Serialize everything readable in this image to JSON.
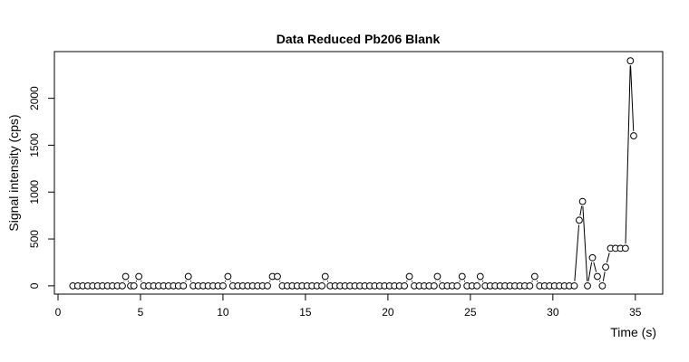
{
  "chart_data": {
    "type": "line",
    "title": "Data Reduced Pb206 Blank",
    "xlabel": "Time (s)",
    "ylabel": "Signal intensity (cps)",
    "xlim": [
      0,
      36
    ],
    "ylim": [
      -40,
      2450
    ],
    "xticks": [
      0,
      5,
      10,
      15,
      20,
      25,
      30,
      35
    ],
    "yticks": [
      0,
      500,
      1000,
      1500,
      2000
    ],
    "grid": false,
    "line_style": "points and connecting lines (R type b)",
    "colors": {
      "line": "#000000",
      "point_fill": "#ffffff",
      "point_stroke": "#000000"
    },
    "points": [
      {
        "x": 0.9,
        "y": 0
      },
      {
        "x": 1.2,
        "y": 0
      },
      {
        "x": 1.5,
        "y": 0
      },
      {
        "x": 1.8,
        "y": 0
      },
      {
        "x": 2.1,
        "y": 0
      },
      {
        "x": 2.4,
        "y": 0
      },
      {
        "x": 2.7,
        "y": 0
      },
      {
        "x": 3.0,
        "y": 0
      },
      {
        "x": 3.3,
        "y": 0
      },
      {
        "x": 3.6,
        "y": 0
      },
      {
        "x": 3.9,
        "y": 0
      },
      {
        "x": 4.1,
        "y": 100
      },
      {
        "x": 4.4,
        "y": 0
      },
      {
        "x": 4.6,
        "y": 0
      },
      {
        "x": 4.9,
        "y": 100
      },
      {
        "x": 5.2,
        "y": 0
      },
      {
        "x": 5.5,
        "y": 0
      },
      {
        "x": 5.8,
        "y": 0
      },
      {
        "x": 6.1,
        "y": 0
      },
      {
        "x": 6.4,
        "y": 0
      },
      {
        "x": 6.7,
        "y": 0
      },
      {
        "x": 7.0,
        "y": 0
      },
      {
        "x": 7.3,
        "y": 0
      },
      {
        "x": 7.6,
        "y": 0
      },
      {
        "x": 7.9,
        "y": 100
      },
      {
        "x": 8.2,
        "y": 0
      },
      {
        "x": 8.5,
        "y": 0
      },
      {
        "x": 8.8,
        "y": 0
      },
      {
        "x": 9.1,
        "y": 0
      },
      {
        "x": 9.4,
        "y": 0
      },
      {
        "x": 9.7,
        "y": 0
      },
      {
        "x": 10.0,
        "y": 0
      },
      {
        "x": 10.3,
        "y": 100
      },
      {
        "x": 10.6,
        "y": 0
      },
      {
        "x": 10.9,
        "y": 0
      },
      {
        "x": 11.2,
        "y": 0
      },
      {
        "x": 11.5,
        "y": 0
      },
      {
        "x": 11.8,
        "y": 0
      },
      {
        "x": 12.1,
        "y": 0
      },
      {
        "x": 12.4,
        "y": 0
      },
      {
        "x": 12.7,
        "y": 0
      },
      {
        "x": 13.0,
        "y": 100
      },
      {
        "x": 13.3,
        "y": 100
      },
      {
        "x": 13.6,
        "y": 0
      },
      {
        "x": 13.9,
        "y": 0
      },
      {
        "x": 14.2,
        "y": 0
      },
      {
        "x": 14.5,
        "y": 0
      },
      {
        "x": 14.8,
        "y": 0
      },
      {
        "x": 15.1,
        "y": 0
      },
      {
        "x": 15.4,
        "y": 0
      },
      {
        "x": 15.7,
        "y": 0
      },
      {
        "x": 16.0,
        "y": 0
      },
      {
        "x": 16.2,
        "y": 100
      },
      {
        "x": 16.5,
        "y": 0
      },
      {
        "x": 16.8,
        "y": 0
      },
      {
        "x": 17.1,
        "y": 0
      },
      {
        "x": 17.4,
        "y": 0
      },
      {
        "x": 17.7,
        "y": 0
      },
      {
        "x": 18.0,
        "y": 0
      },
      {
        "x": 18.3,
        "y": 0
      },
      {
        "x": 18.6,
        "y": 0
      },
      {
        "x": 18.9,
        "y": 0
      },
      {
        "x": 19.2,
        "y": 0
      },
      {
        "x": 19.5,
        "y": 0
      },
      {
        "x": 19.8,
        "y": 0
      },
      {
        "x": 20.1,
        "y": 0
      },
      {
        "x": 20.4,
        "y": 0
      },
      {
        "x": 20.7,
        "y": 0
      },
      {
        "x": 21.0,
        "y": 0
      },
      {
        "x": 21.3,
        "y": 100
      },
      {
        "x": 21.6,
        "y": 0
      },
      {
        "x": 21.9,
        "y": 0
      },
      {
        "x": 22.2,
        "y": 0
      },
      {
        "x": 22.5,
        "y": 0
      },
      {
        "x": 22.8,
        "y": 0
      },
      {
        "x": 23.0,
        "y": 100
      },
      {
        "x": 23.3,
        "y": 0
      },
      {
        "x": 23.6,
        "y": 0
      },
      {
        "x": 23.9,
        "y": 0
      },
      {
        "x": 24.2,
        "y": 0
      },
      {
        "x": 24.5,
        "y": 100
      },
      {
        "x": 24.8,
        "y": 0
      },
      {
        "x": 25.1,
        "y": 0
      },
      {
        "x": 25.4,
        "y": 0
      },
      {
        "x": 25.6,
        "y": 100
      },
      {
        "x": 25.9,
        "y": 0
      },
      {
        "x": 26.2,
        "y": 0
      },
      {
        "x": 26.5,
        "y": 0
      },
      {
        "x": 26.8,
        "y": 0
      },
      {
        "x": 27.1,
        "y": 0
      },
      {
        "x": 27.4,
        "y": 0
      },
      {
        "x": 27.7,
        "y": 0
      },
      {
        "x": 28.0,
        "y": 0
      },
      {
        "x": 28.3,
        "y": 0
      },
      {
        "x": 28.6,
        "y": 0
      },
      {
        "x": 28.9,
        "y": 100
      },
      {
        "x": 29.2,
        "y": 0
      },
      {
        "x": 29.5,
        "y": 0
      },
      {
        "x": 29.8,
        "y": 0
      },
      {
        "x": 30.1,
        "y": 0
      },
      {
        "x": 30.4,
        "y": 0
      },
      {
        "x": 30.7,
        "y": 0
      },
      {
        "x": 31.0,
        "y": 0
      },
      {
        "x": 31.3,
        "y": 0
      },
      {
        "x": 31.6,
        "y": 700
      },
      {
        "x": 31.8,
        "y": 900
      },
      {
        "x": 32.1,
        "y": 0
      },
      {
        "x": 32.4,
        "y": 300
      },
      {
        "x": 32.7,
        "y": 100
      },
      {
        "x": 33.0,
        "y": 0
      },
      {
        "x": 33.2,
        "y": 200
      },
      {
        "x": 33.5,
        "y": 400
      },
      {
        "x": 33.8,
        "y": 400
      },
      {
        "x": 34.1,
        "y": 400
      },
      {
        "x": 34.4,
        "y": 400
      },
      {
        "x": 34.7,
        "y": 2400
      },
      {
        "x": 34.9,
        "y": 1600
      }
    ]
  }
}
